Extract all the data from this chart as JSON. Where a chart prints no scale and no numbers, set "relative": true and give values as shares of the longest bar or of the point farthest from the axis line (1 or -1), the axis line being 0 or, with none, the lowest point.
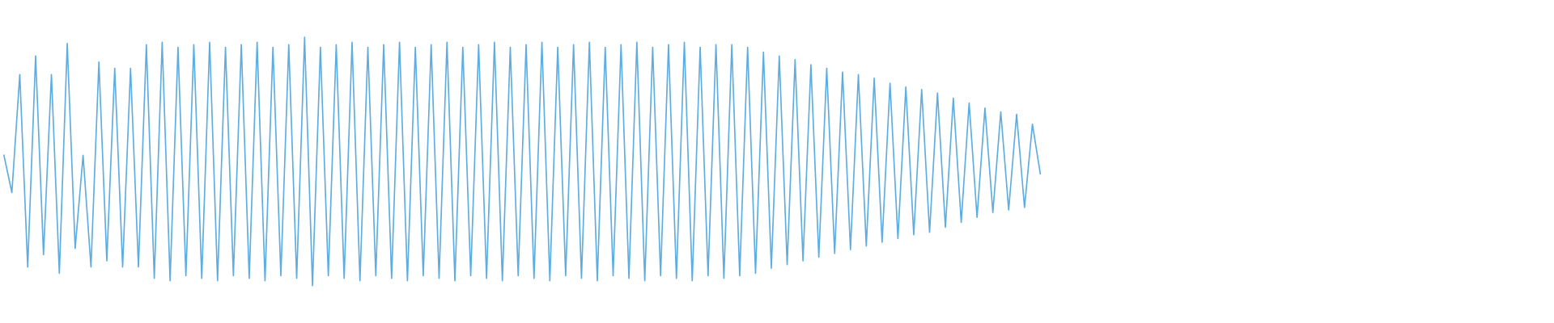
{
  "chart_data": {
    "type": "line",
    "relative": true,
    "color": "#5dade2",
    "marker": "none",
    "line_style": "solid",
    "legend": false,
    "categories": [
      null,
      null,
      null,
      null,
      null,
      null,
      null,
      null,
      null,
      null,
      null,
      null,
      null,
      null,
      null,
      null,
      null,
      null,
      null,
      null,
      null,
      null,
      null,
      null,
      null,
      null,
      null,
      null,
      null,
      null,
      null,
      null,
      null,
      null,
      null,
      null,
      null,
      null,
      null,
      null,
      null,
      null,
      null,
      null,
      null,
      null,
      null,
      null,
      null,
      null,
      null,
      null,
      null,
      null,
      null,
      null,
      null,
      null,
      null,
      null,
      null,
      null,
      null,
      null,
      null,
      null,
      null,
      null,
      null,
      null,
      null,
      null,
      null,
      null,
      null,
      null,
      null,
      null,
      null,
      null,
      null,
      null,
      null,
      null,
      null,
      null,
      null,
      null,
      null,
      null,
      null,
      null,
      null,
      null,
      null,
      null,
      null,
      null,
      null,
      null,
      null,
      null,
      null,
      null,
      null,
      null,
      null,
      null,
      null,
      null,
      null,
      null,
      null,
      null,
      null,
      null,
      null,
      null,
      null,
      null,
      null,
      null,
      null,
      null,
      null,
      null,
      null,
      null,
      null,
      null,
      null,
      null
    ],
    "values": [
      0.525,
      0.375,
      0.85,
      0.075,
      0.925,
      0.125,
      0.85,
      0.05,
      0.975,
      0.15,
      0.525,
      0.075,
      0.9,
      0.1,
      0.875,
      0.075,
      0.875,
      0.075,
      0.97,
      0.03,
      0.98,
      0.02,
      0.96,
      0.04,
      0.97,
      0.03,
      0.98,
      0.02,
      0.96,
      0.04,
      0.97,
      0.03,
      0.98,
      0.02,
      0.96,
      0.04,
      0.97,
      0.03,
      1,
      0,
      0.96,
      0.04,
      0.97,
      0.03,
      0.98,
      0.02,
      0.96,
      0.04,
      0.97,
      0.03,
      0.98,
      0.02,
      0.96,
      0.04,
      0.97,
      0.03,
      0.98,
      0.02,
      0.96,
      0.04,
      0.97,
      0.03,
      0.98,
      0.02,
      0.96,
      0.04,
      0.97,
      0.03,
      0.98,
      0.02,
      0.96,
      0.04,
      0.97,
      0.03,
      0.98,
      0.02,
      0.96,
      0.04,
      0.97,
      0.03,
      0.98,
      0.02,
      0.96,
      0.04,
      0.97,
      0.03,
      0.98,
      0.02,
      0.96,
      0.04,
      0.97,
      0.03,
      0.97,
      0.04,
      0.96,
      0.05,
      0.94,
      0.07,
      0.925,
      0.085,
      0.91,
      0.1,
      0.89,
      0.115,
      0.875,
      0.13,
      0.86,
      0.145,
      0.85,
      0.16,
      0.835,
      0.175,
      0.815,
      0.19,
      0.8,
      0.205,
      0.79,
      0.215,
      0.775,
      0.235,
      0.755,
      0.255,
      0.735,
      0.275,
      0.715,
      0.295,
      0.7,
      0.305,
      0.69,
      0.315,
      0.65,
      0.45
    ]
  }
}
